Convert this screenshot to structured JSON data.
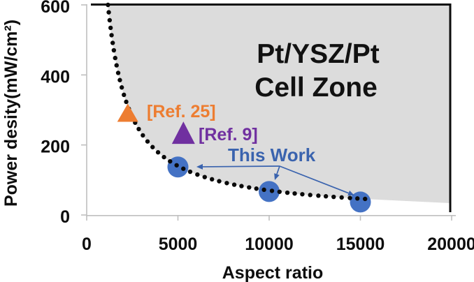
{
  "chart_data": {
    "type": "scatter",
    "xlabel": "Aspect ratio",
    "ylabel": "Power desity(mW/cm²)",
    "xlim": [
      0,
      20000
    ],
    "ylim": [
      0,
      600
    ],
    "xticks": [
      0,
      5000,
      10000,
      15000,
      20000
    ],
    "xtick_labels": [
      "0",
      "5000",
      "10000",
      "15000",
      "20000"
    ],
    "yticks": [
      0,
      200,
      400,
      600
    ],
    "ytick_labels": [
      "0",
      "200",
      "400",
      "600"
    ],
    "grid": false,
    "legend": "none",
    "zone": {
      "label_line1": "Pt/YSZ/Pt",
      "label_line2": "Cell Zone",
      "fill_color": "#DCDCDC",
      "border_color": "#0d0d0d",
      "description": "shaded region above/right of dotted boundary curve"
    },
    "boundary_curve": {
      "style": "dotted",
      "color": "#0a0a0a",
      "relation": "power_density ≈ 700000 / aspect_ratio",
      "aspect_range": [
        1167,
        15400
      ]
    },
    "series": [
      {
        "name": "This Work",
        "marker": "circle",
        "color": "#4472C4",
        "label_color": "#3A63AE",
        "points": [
          {
            "x": 5000,
            "y": 140
          },
          {
            "x": 10000,
            "y": 70
          },
          {
            "x": 15000,
            "y": 40
          }
        ]
      },
      {
        "name": "[Ref. 25]",
        "marker": "triangle",
        "color": "#ED7D31",
        "points": [
          {
            "x": 2250,
            "y": 290
          }
        ]
      },
      {
        "name": "[Ref. 9]",
        "marker": "triangle",
        "color": "#7030A0",
        "points": [
          {
            "x": 5300,
            "y": 235
          }
        ]
      }
    ],
    "annotations": [
      {
        "text": "[Ref. 25]",
        "color": "#ED7D31"
      },
      {
        "text": "[Ref. 9]",
        "color": "#7030A0"
      },
      {
        "text": "This Work",
        "color": "#3A63AE",
        "arrows_to": "all three This Work points"
      }
    ],
    "axis_line_color": "#BFBFBF",
    "tick_text_color": "#0d0d0d"
  }
}
